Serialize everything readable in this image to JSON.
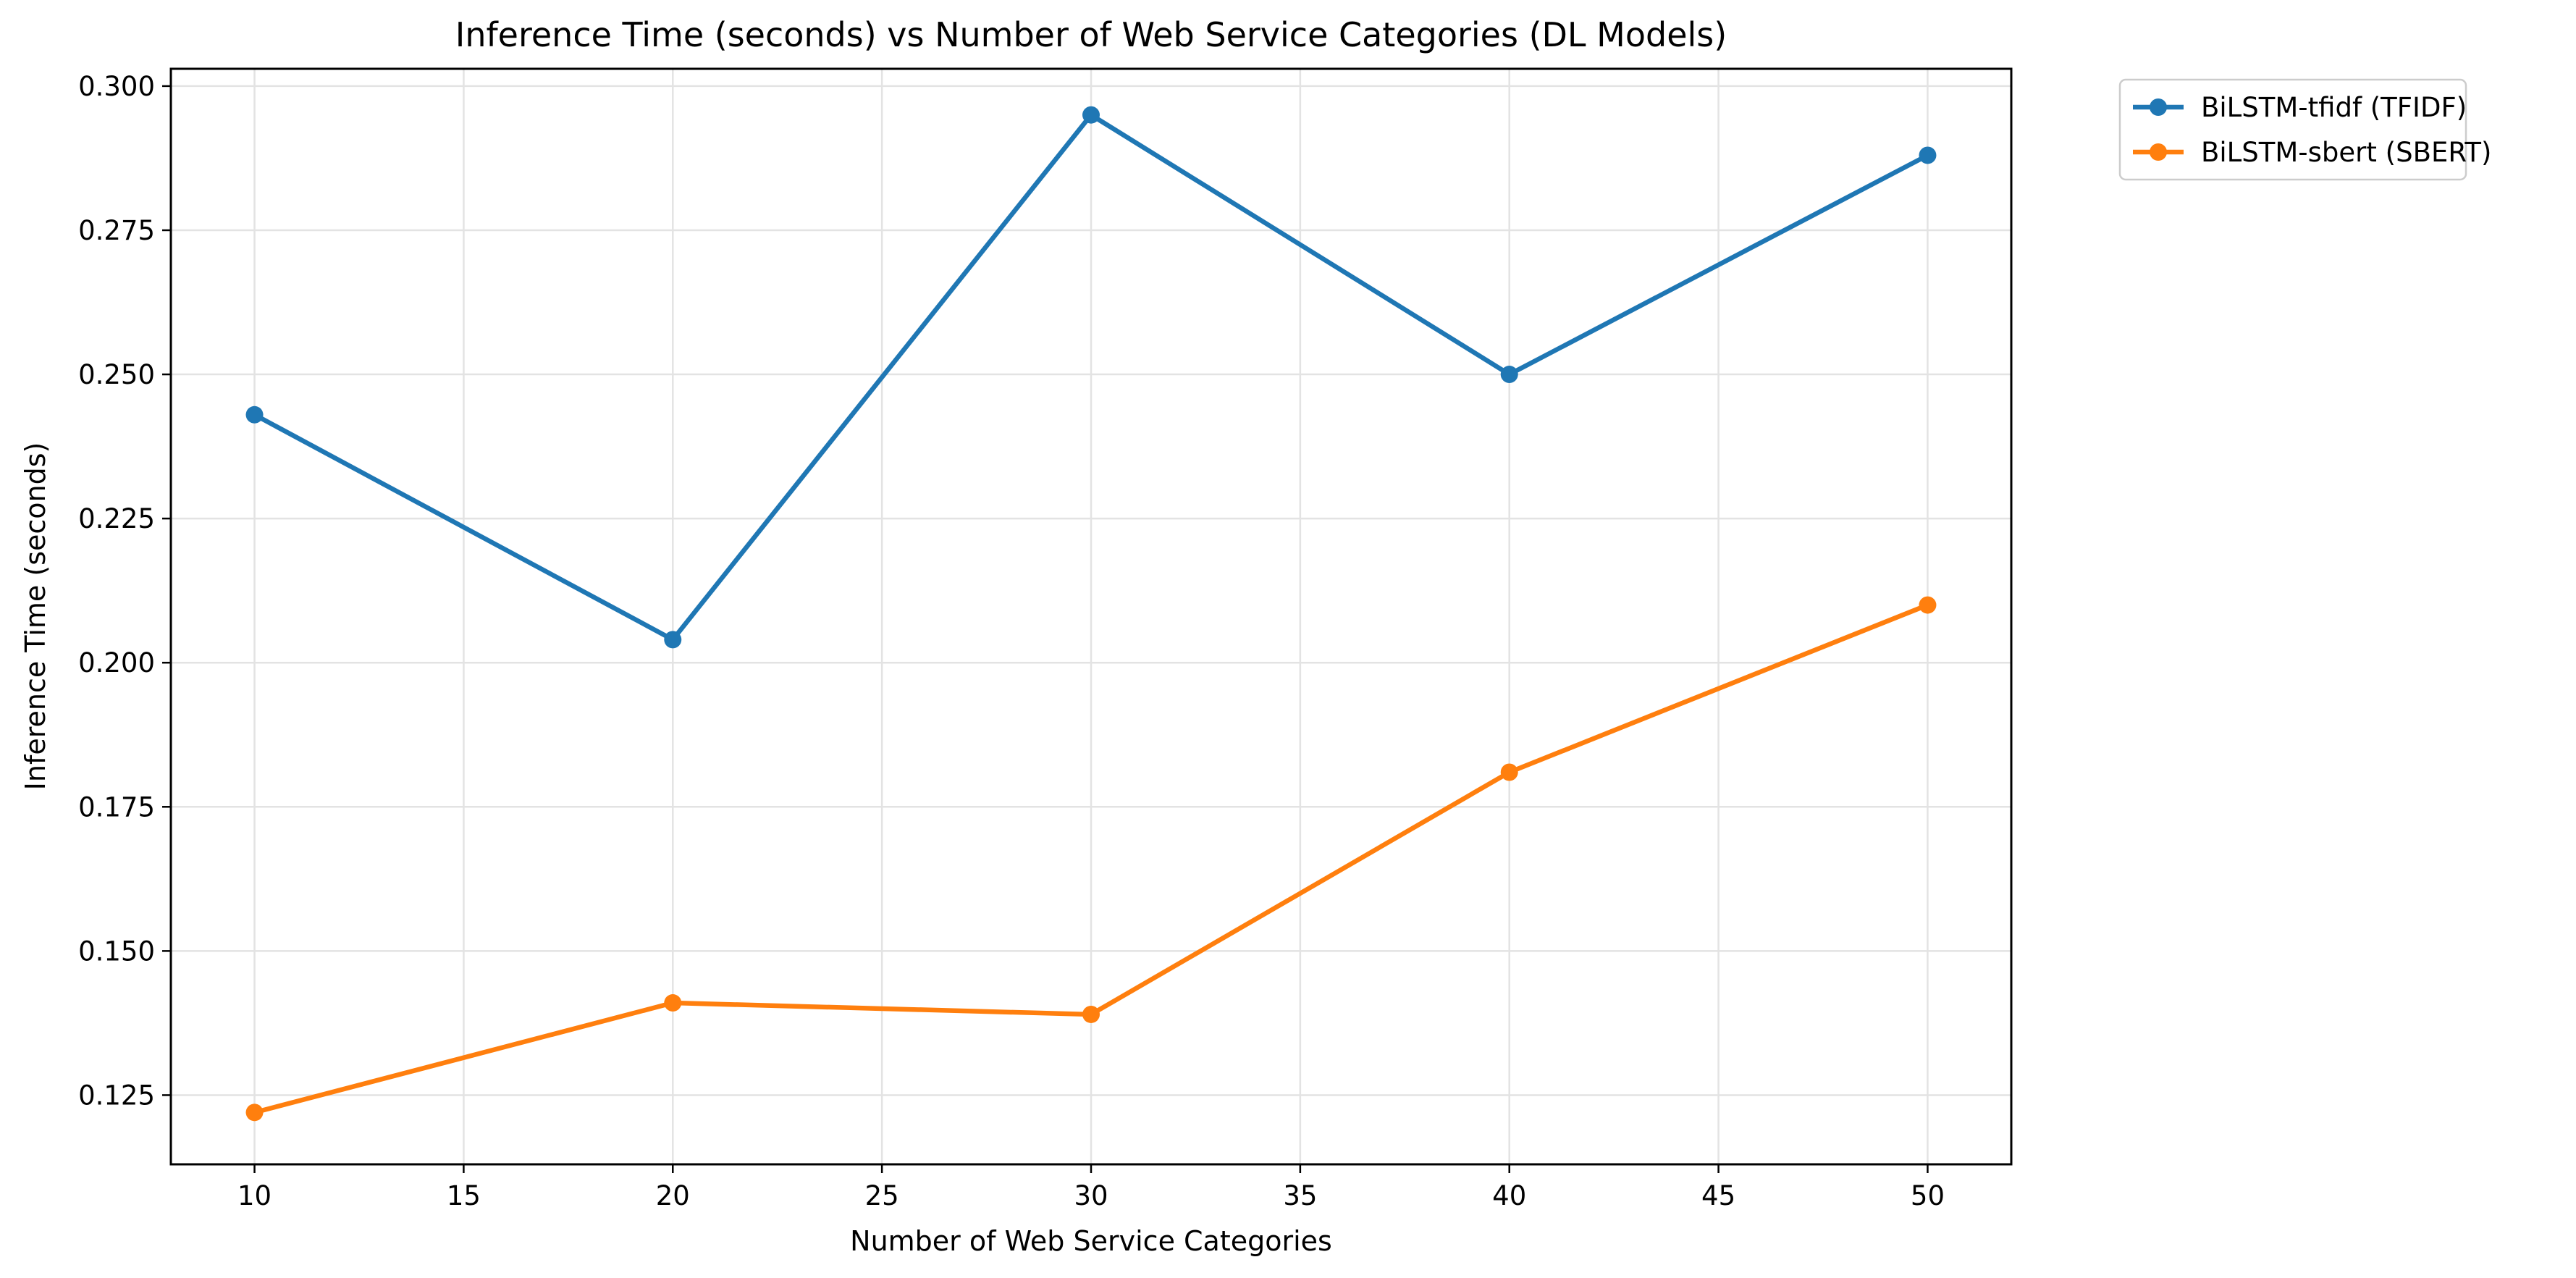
{
  "chart_data": {
    "type": "line",
    "title": "Inference Time (seconds) vs Number of Web Service Categories (DL Models)",
    "xlabel": "Number of Web Service Categories",
    "ylabel": "Inference Time (seconds)",
    "x": [
      10,
      20,
      30,
      40,
      50
    ],
    "xlim": [
      8,
      52
    ],
    "ylim": [
      0.113,
      0.303
    ],
    "xticks": [
      10,
      15,
      20,
      25,
      30,
      35,
      40,
      45,
      50
    ],
    "xtick_labels": [
      "10",
      "15",
      "20",
      "25",
      "30",
      "35",
      "40",
      "45",
      "50"
    ],
    "yticks": [
      0.125,
      0.15,
      0.175,
      0.2,
      0.225,
      0.25,
      0.275,
      0.3
    ],
    "ytick_labels": [
      "0.125",
      "0.150",
      "0.175",
      "0.200",
      "0.225",
      "0.250",
      "0.275",
      "0.300"
    ],
    "grid": true,
    "legend_position": "outside-top-right",
    "series": [
      {
        "name": "BiLSTM-tfidf (TFIDF)",
        "color": "#1f77b4",
        "marker": "circle",
        "values": [
          0.243,
          0.204,
          0.295,
          0.25,
          0.288
        ]
      },
      {
        "name": "BiLSTM-sbert (SBERT)",
        "color": "#ff7f0e",
        "marker": "circle",
        "values": [
          0.122,
          0.141,
          0.139,
          0.181,
          0.21
        ]
      }
    ]
  }
}
